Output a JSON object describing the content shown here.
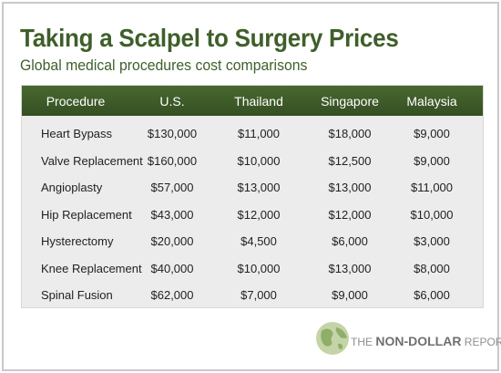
{
  "title": "Taking a Scalpel to Surgery Prices",
  "subtitle": "Global medical procedures cost comparisons",
  "chart_data": {
    "type": "table",
    "columns": [
      "Procedure",
      "U.S.",
      "Thailand",
      "Singapore",
      "Malaysia"
    ],
    "rows": [
      [
        "Heart Bypass",
        "$130,000",
        "$11,000",
        "$18,000",
        "$9,000"
      ],
      [
        "Valve Replacement",
        "$160,000",
        "$10,000",
        "$12,500",
        "$9,000"
      ],
      [
        "Angioplasty",
        "$57,000",
        "$13,000",
        "$13,000",
        "$11,000"
      ],
      [
        "Hip Replacement",
        "$43,000",
        "$12,000",
        "$12,000",
        "$10,000"
      ],
      [
        "Hysterectomy",
        "$20,000",
        "$4,500",
        "$6,000",
        "$3,000"
      ],
      [
        "Knee Replacement",
        "$40,000",
        "$10,000",
        "$13,000",
        "$8,000"
      ],
      [
        "Spinal Fusion",
        "$62,000",
        "$7,000",
        "$9,000",
        "$6,000"
      ]
    ]
  },
  "logo": {
    "pre": "THE ",
    "brand": "NON-DOLLAR",
    "post": " REPORT"
  },
  "colors": {
    "title": "#3f5f2a",
    "header_bg": "#3e5a29",
    "table_bg": "#ececec"
  }
}
